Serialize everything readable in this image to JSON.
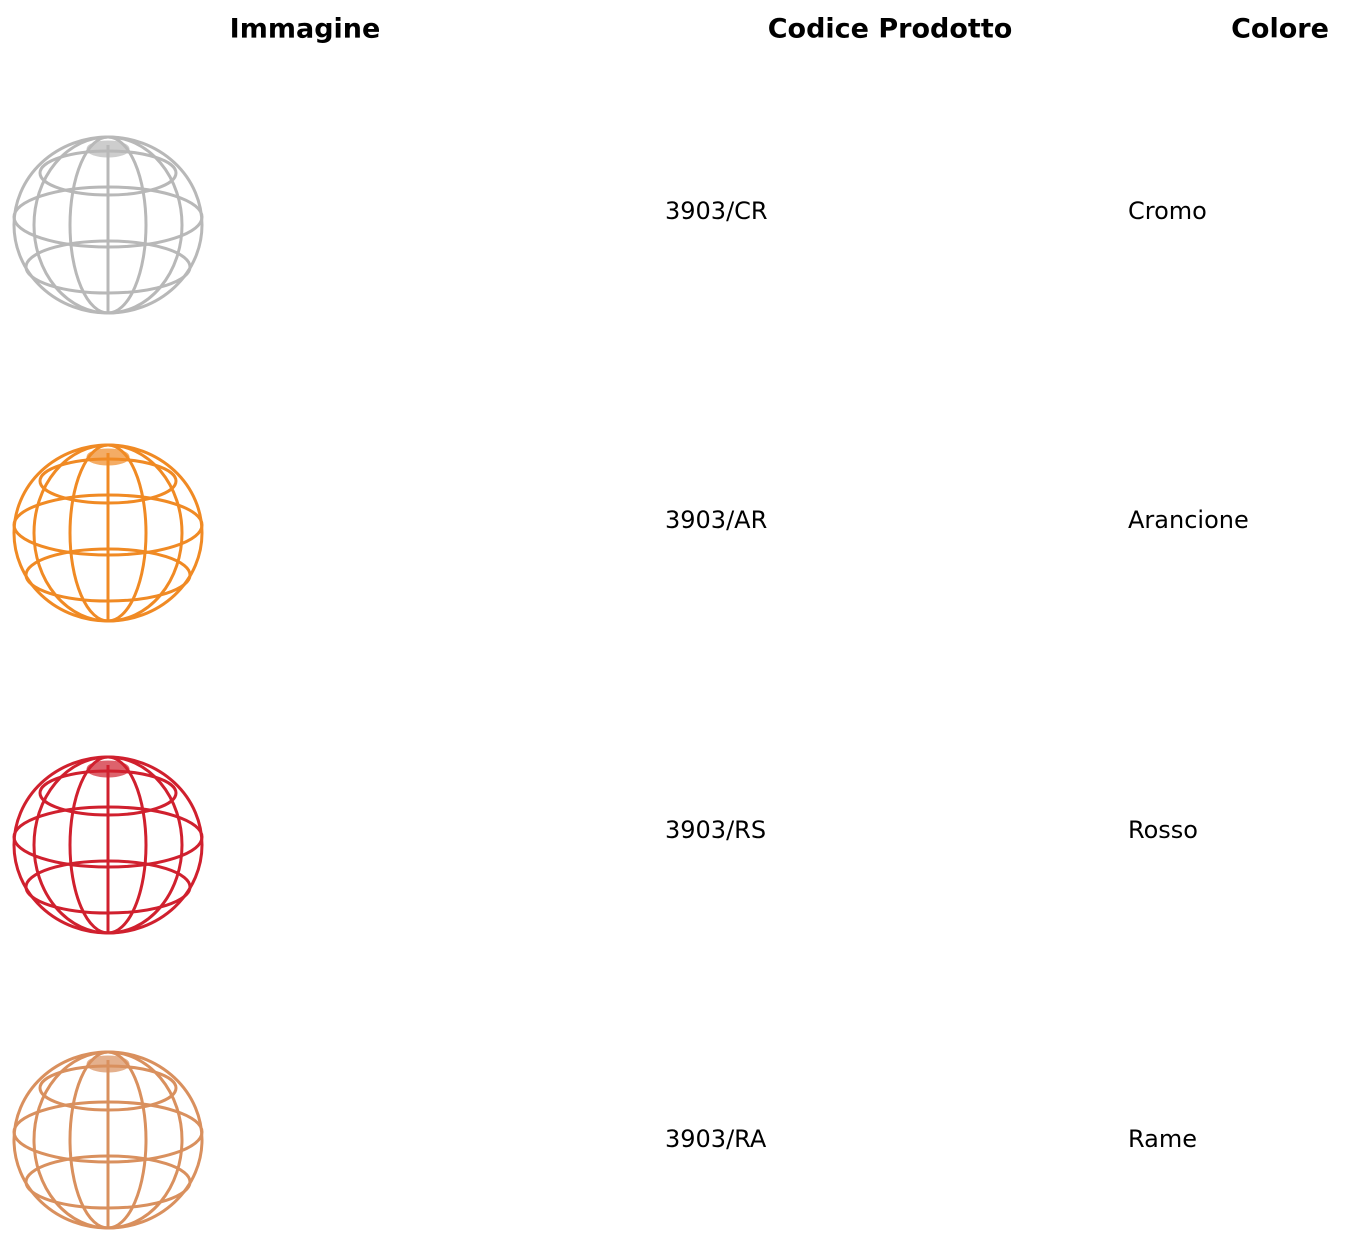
{
  "table": {
    "headers": [
      "Immagine",
      "Codice Prodotto",
      "Colore"
    ],
    "rows": [
      [
        "3903/CR",
        "Cromo"
      ],
      [
        "3903/AR",
        "Arancione"
      ],
      [
        "3903/RS",
        "Rosso"
      ],
      [
        "3903/RA",
        "Rame"
      ]
    ]
  }
}
